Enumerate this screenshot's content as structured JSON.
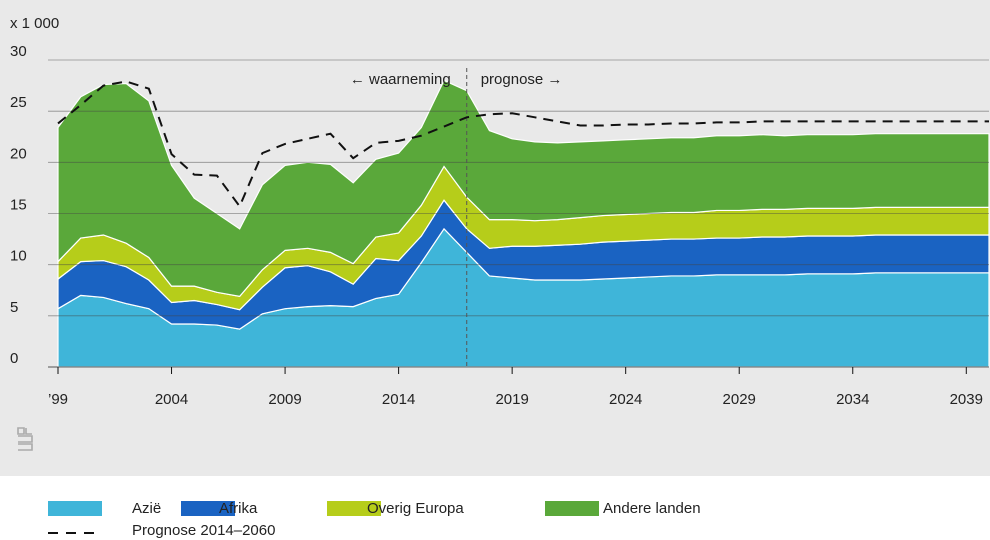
{
  "chart_data": {
    "type": "stacked-area",
    "y_unit_label": "x 1 000",
    "x": [
      1999,
      2000,
      2001,
      2002,
      2003,
      2004,
      2005,
      2006,
      2007,
      2008,
      2009,
      2010,
      2011,
      2012,
      2013,
      2014,
      2015,
      2016,
      2017,
      2018,
      2019,
      2020,
      2021,
      2022,
      2023,
      2024,
      2025,
      2026,
      2027,
      2028,
      2029,
      2030,
      2031,
      2032,
      2033,
      2034,
      2035,
      2036,
      2037,
      2038,
      2039,
      2040
    ],
    "series": [
      {
        "name": "Azië",
        "color": "#3fb5d9",
        "values": [
          5.7,
          7.0,
          6.8,
          6.2,
          5.7,
          4.2,
          4.2,
          4.1,
          3.7,
          5.2,
          5.7,
          5.9,
          6.0,
          5.9,
          6.7,
          7.1,
          10.2,
          13.5,
          11.2,
          8.9,
          8.7,
          8.5,
          8.5,
          8.5,
          8.6,
          8.7,
          8.8,
          8.9,
          8.9,
          9.0,
          9.0,
          9.0,
          9.0,
          9.1,
          9.1,
          9.1,
          9.2,
          9.2,
          9.2,
          9.2,
          9.2,
          9.2
        ]
      },
      {
        "name": "Afrika",
        "color": "#1a63c2",
        "values": [
          2.9,
          3.3,
          3.6,
          3.6,
          2.8,
          2.1,
          2.3,
          2.0,
          1.9,
          2.6,
          4.0,
          4.0,
          3.3,
          2.2,
          3.9,
          3.3,
          2.6,
          2.8,
          2.3,
          2.7,
          3.1,
          3.3,
          3.4,
          3.5,
          3.6,
          3.6,
          3.6,
          3.6,
          3.6,
          3.6,
          3.6,
          3.7,
          3.7,
          3.7,
          3.7,
          3.7,
          3.7,
          3.7,
          3.7,
          3.7,
          3.7,
          3.7
        ]
      },
      {
        "name": "Overig Europa",
        "color": "#b6cd1a",
        "values": [
          1.7,
          2.3,
          2.5,
          2.3,
          2.2,
          1.6,
          1.4,
          1.2,
          1.3,
          1.7,
          1.7,
          1.7,
          1.9,
          2.0,
          2.1,
          2.7,
          3.0,
          3.3,
          3.1,
          2.8,
          2.6,
          2.5,
          2.5,
          2.6,
          2.6,
          2.6,
          2.6,
          2.6,
          2.6,
          2.7,
          2.7,
          2.7,
          2.7,
          2.7,
          2.7,
          2.7,
          2.7,
          2.7,
          2.7,
          2.7,
          2.7,
          2.7
        ]
      },
      {
        "name": "Andere landen",
        "color": "#5aa83a",
        "values": [
          13.1,
          13.8,
          14.7,
          15.6,
          15.3,
          11.8,
          8.6,
          7.7,
          6.6,
          8.3,
          8.3,
          8.4,
          8.6,
          7.9,
          7.6,
          7.8,
          7.6,
          8.4,
          10.4,
          8.7,
          7.9,
          7.7,
          7.5,
          7.4,
          7.3,
          7.3,
          7.3,
          7.3,
          7.3,
          7.3,
          7.3,
          7.3,
          7.2,
          7.2,
          7.2,
          7.2,
          7.2,
          7.2,
          7.2,
          7.2,
          7.2,
          7.2
        ]
      }
    ],
    "line": {
      "name": "Prognose 2014–2060",
      "color": "#111111",
      "dashed": true,
      "values": [
        23.8,
        25.6,
        27.5,
        27.9,
        27.2,
        20.8,
        18.8,
        18.7,
        15.7,
        20.9,
        21.8,
        22.3,
        22.8,
        20.4,
        21.9,
        22.1,
        22.6,
        23.5,
        24.4,
        24.7,
        24.8,
        24.4,
        24.0,
        23.6,
        23.6,
        23.7,
        23.7,
        23.8,
        23.8,
        23.9,
        23.9,
        24.0,
        24.0,
        24.0,
        24.0,
        24.0,
        24.0,
        24.0,
        24.0,
        24.0,
        24.0,
        24.0
      ]
    },
    "forecast_start": 2017,
    "annotations": [
      "← waarneming",
      "prognose →"
    ],
    "xlim": [
      1999,
      2040
    ],
    "xticks": [
      {
        "value": 1999,
        "label": "’99"
      },
      2004,
      2009,
      2014,
      2019,
      2024,
      2029,
      2034,
      2039
    ],
    "ylim": [
      0,
      30
    ],
    "yticks": [
      0,
      5,
      10,
      15,
      20,
      25,
      30
    ],
    "grid": true
  }
}
